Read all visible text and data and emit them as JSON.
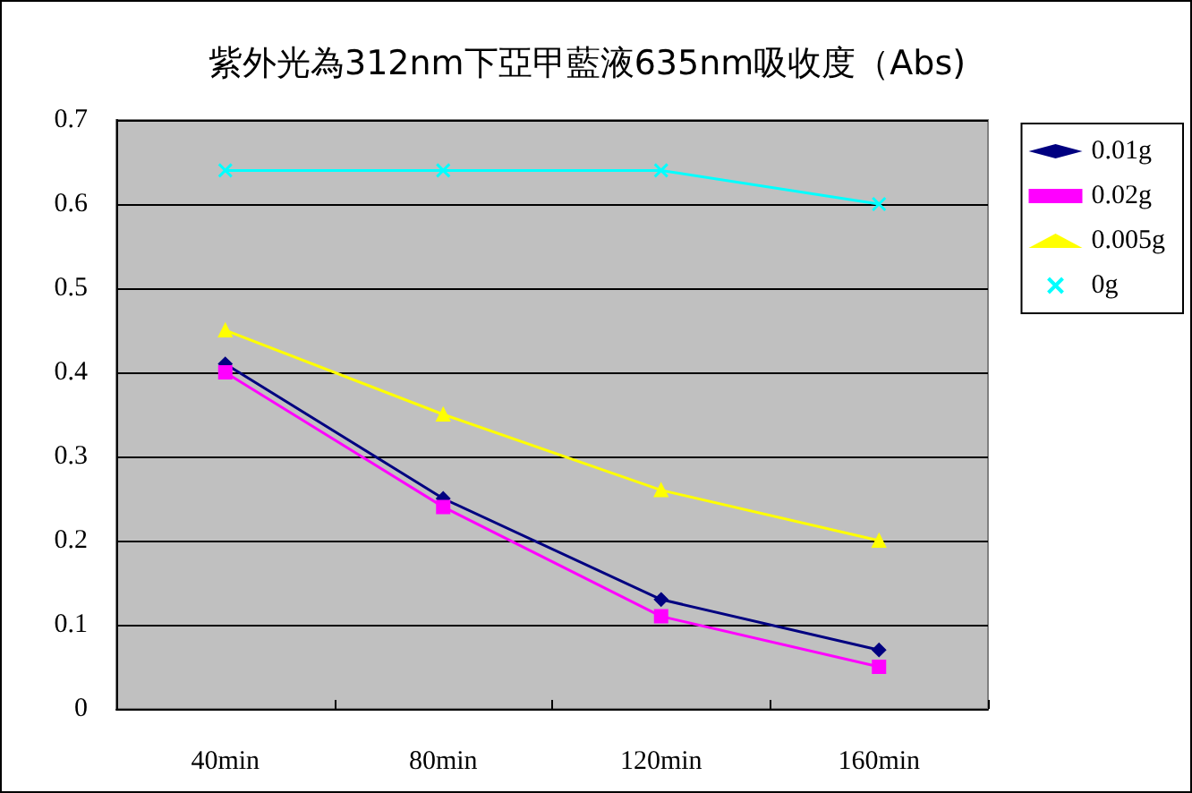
{
  "chart_data": {
    "type": "line",
    "title": "紫外光為312nm下亞甲藍液635nm吸收度（Abs)",
    "categories": [
      "40min",
      "80min",
      "120min",
      "160min"
    ],
    "series": [
      {
        "name": "0.01g",
        "color": "#000080",
        "marker": "diamond",
        "values": [
          0.41,
          0.25,
          0.13,
          0.07
        ]
      },
      {
        "name": "0.02g",
        "color": "#ff00ff",
        "marker": "square",
        "values": [
          0.4,
          0.24,
          0.11,
          0.05
        ]
      },
      {
        "name": "0.005g",
        "color": "#ffff00",
        "marker": "triangle",
        "values": [
          0.45,
          0.35,
          0.26,
          0.2
        ]
      },
      {
        "name": "0g",
        "color": "#00ffff",
        "marker": "cross",
        "values": [
          0.64,
          0.64,
          0.64,
          0.6
        ]
      }
    ],
    "ylim": [
      0,
      0.7
    ],
    "yticks": [
      0,
      0.1,
      0.2,
      0.3,
      0.4,
      0.5,
      0.6,
      0.7
    ],
    "grid": "y",
    "legend": "right"
  }
}
